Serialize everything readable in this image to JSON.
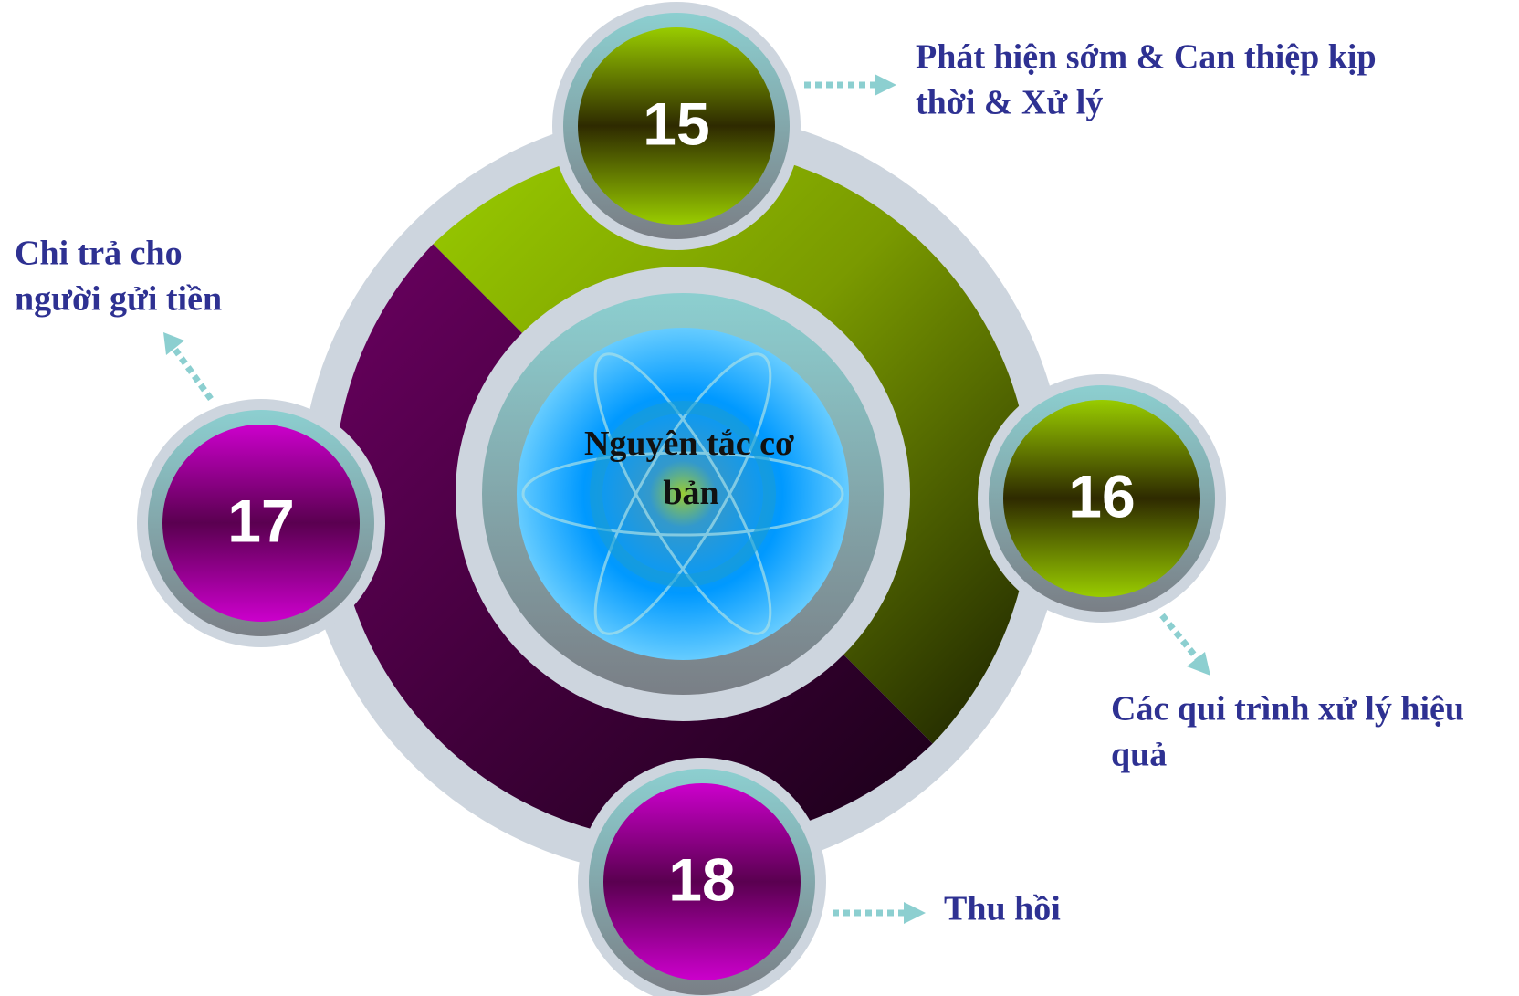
{
  "center": {
    "label_lines": [
      "Nguyên tắc cơ",
      "bản"
    ]
  },
  "nodes": [
    {
      "number": "15",
      "label_lines": [
        "Phát hiện sớm & Can thiệp kịp",
        "thời & Xử lý"
      ]
    },
    {
      "number": "16",
      "label_lines": [
        "Các qui trình xử lý hiệu",
        "quả"
      ]
    },
    {
      "number": "17",
      "label_lines": [
        "Chi trả cho",
        "người gửi tiền"
      ]
    },
    {
      "number": "18",
      "label_lines": [
        "Thu hồi"
      ]
    }
  ]
}
